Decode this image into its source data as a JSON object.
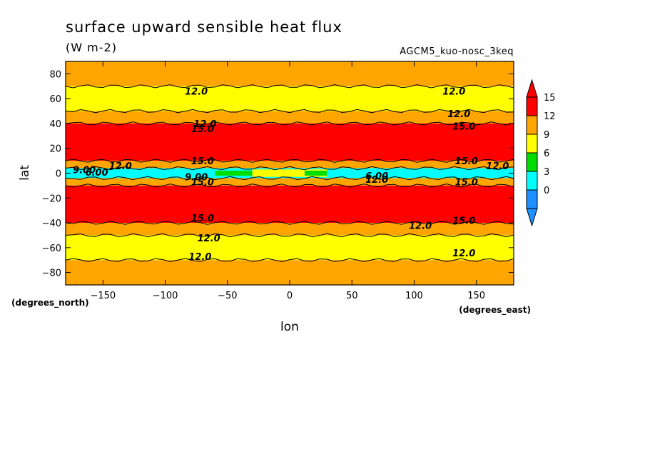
{
  "chart_data": {
    "type": "heatmap",
    "title": "surface upward sensible heat flux",
    "units": "(W m-2)",
    "run_label": "AGCM5_kuo-nosc_3keq",
    "xlabel": "lon",
    "ylabel": "lat",
    "x_units_label": "(degrees_east)",
    "y_units_label": "(degrees_north)",
    "xlim": [
      -180,
      180
    ],
    "ylim": [
      -90,
      90
    ],
    "x_ticks": [
      -150,
      -100,
      -50,
      0,
      50,
      100,
      150
    ],
    "x_tick_labels": [
      "−150",
      "−100",
      "−50",
      "0",
      "50",
      "100",
      "150"
    ],
    "y_ticks": [
      80,
      60,
      40,
      20,
      0,
      -20,
      -40,
      -60,
      -80
    ],
    "y_tick_labels": [
      "80",
      "60",
      "40",
      "20",
      "0",
      "−20",
      "−40",
      "−60",
      "−80"
    ],
    "colorbar": {
      "levels": [
        0,
        3,
        6,
        9,
        12,
        15
      ],
      "labels": [
        "0",
        "3",
        "6",
        "9",
        "12",
        "15"
      ],
      "colors": [
        "#1e90ff",
        "#00ffff",
        "#00dd00",
        "#ffff00",
        "#ffa500",
        "#ff0000"
      ],
      "below_color": "#1e90ff",
      "above_color": "#ff0000"
    },
    "bands": [
      {
        "lat": [
          70,
          90
        ],
        "level": 12,
        "color": "#ffa500"
      },
      {
        "lat": [
          50,
          70
        ],
        "level": 9,
        "color": "#ffff00"
      },
      {
        "lat": [
          40,
          50
        ],
        "level": 12,
        "color": "#ffa500"
      },
      {
        "lat": [
          10,
          40
        ],
        "level": 15,
        "color": "#ff0000"
      },
      {
        "lat": [
          4,
          10
        ],
        "level": 12,
        "color": "#ffa500"
      },
      {
        "lat": [
          -4,
          4
        ],
        "level": 3,
        "color": "#00ffff"
      },
      {
        "lat": [
          -10,
          -4
        ],
        "level": 12,
        "color": "#ffa500"
      },
      {
        "lat": [
          -40,
          -10
        ],
        "level": 15,
        "color": "#ff0000"
      },
      {
        "lat": [
          -50,
          -40
        ],
        "level": 12,
        "color": "#ffa500"
      },
      {
        "lat": [
          -70,
          -50
        ],
        "level": 9,
        "color": "#ffff00"
      },
      {
        "lat": [
          -90,
          -70
        ],
        "level": 12,
        "color": "#ffa500"
      }
    ],
    "equatorial_features": [
      {
        "lon": [
          -60,
          -30
        ],
        "lat": [
          -2,
          2
        ],
        "level": 6,
        "color": "#00dd00"
      },
      {
        "lon": [
          -30,
          30
        ],
        "lat": [
          -3,
          3
        ],
        "level": 9,
        "color": "#ffff00"
      },
      {
        "lon": [
          12,
          30
        ],
        "lat": [
          -2,
          2
        ],
        "level": 6,
        "color": "#00dd00"
      }
    ],
    "contour_labels": [
      {
        "text": "12.0",
        "lon": -75,
        "lat": 66
      },
      {
        "text": "12.0",
        "lon": 132,
        "lat": 66
      },
      {
        "text": "12.0",
        "lon": 136,
        "lat": 48
      },
      {
        "text": "12.0",
        "lon": -68,
        "lat": 40
      },
      {
        "text": "15.0",
        "lon": -70,
        "lat": 36
      },
      {
        "text": "15.0",
        "lon": 140,
        "lat": 38
      },
      {
        "text": "15.0",
        "lon": -70,
        "lat": 10
      },
      {
        "text": "15.0",
        "lon": 142,
        "lat": 10
      },
      {
        "text": "12.0",
        "lon": -136,
        "lat": 6
      },
      {
        "text": "12.0",
        "lon": 167,
        "lat": 6
      },
      {
        "text": "9.00",
        "lon": -165,
        "lat": 3
      },
      {
        "text": "6.00",
        "lon": -155,
        "lat": 1
      },
      {
        "text": "9.00",
        "lon": -75,
        "lat": -3
      },
      {
        "text": "6.00",
        "lon": 70,
        "lat": -2
      },
      {
        "text": "12.0",
        "lon": 70,
        "lat": -5
      },
      {
        "text": "15.0",
        "lon": -70,
        "lat": -7
      },
      {
        "text": "15.0",
        "lon": 142,
        "lat": -7
      },
      {
        "text": "15.0",
        "lon": -70,
        "lat": -36
      },
      {
        "text": "15.0",
        "lon": 140,
        "lat": -38
      },
      {
        "text": "12.0",
        "lon": 105,
        "lat": -42
      },
      {
        "text": "12.0",
        "lon": -65,
        "lat": -52
      },
      {
        "text": "12.0",
        "lon": -72,
        "lat": -67
      },
      {
        "text": "12.0",
        "lon": 140,
        "lat": -64
      }
    ]
  }
}
